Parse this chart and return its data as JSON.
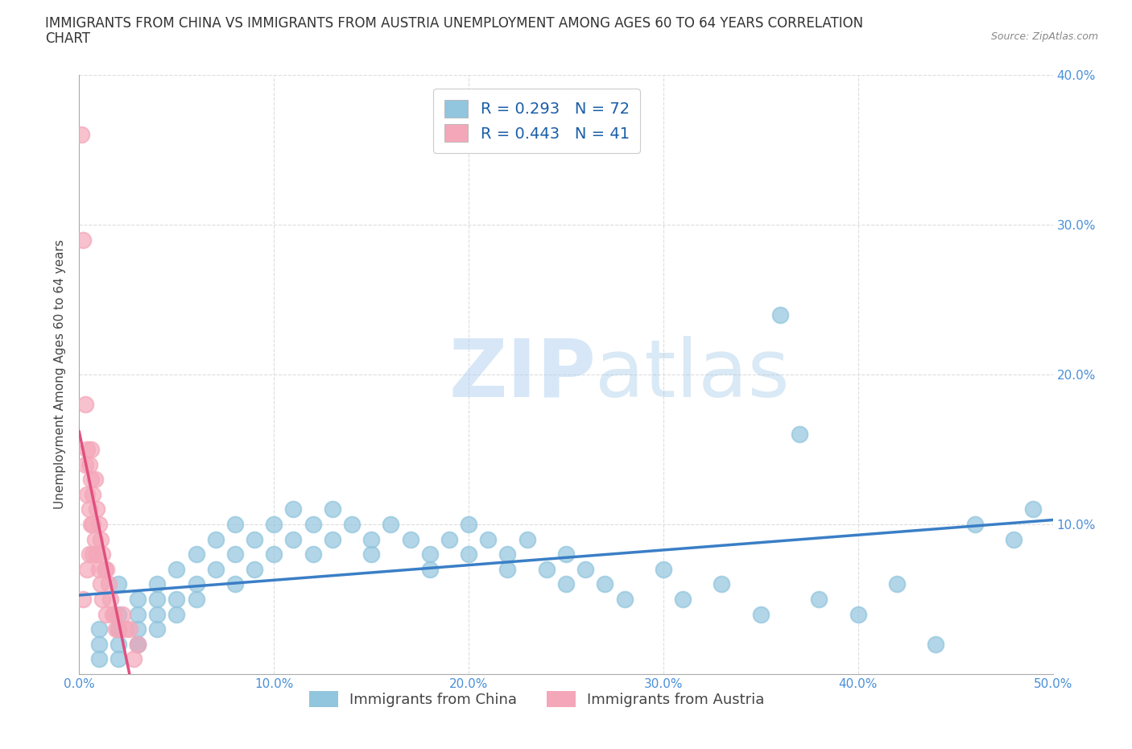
{
  "title_line1": "IMMIGRANTS FROM CHINA VS IMMIGRANTS FROM AUSTRIA UNEMPLOYMENT AMONG AGES 60 TO 64 YEARS CORRELATION",
  "title_line2": "CHART",
  "source_text": "Source: ZipAtlas.com",
  "ylabel": "Unemployment Among Ages 60 to 64 years",
  "xlim": [
    0.0,
    0.5
  ],
  "ylim": [
    0.0,
    0.4
  ],
  "xticks": [
    0.0,
    0.1,
    0.2,
    0.3,
    0.4,
    0.5
  ],
  "yticks": [
    0.0,
    0.1,
    0.2,
    0.3,
    0.4
  ],
  "xtick_labels": [
    "0.0%",
    "10.0%",
    "20.0%",
    "30.0%",
    "40.0%",
    "50.0%"
  ],
  "ytick_labels_right": [
    "",
    "10.0%",
    "20.0%",
    "30.0%",
    "40.0%"
  ],
  "china_color": "#92C5DE",
  "austria_color": "#F4A7B9",
  "china_line_color": "#3A7EC6",
  "austria_line_color": "#E05080",
  "china_R": 0.293,
  "china_N": 72,
  "austria_R": 0.443,
  "austria_N": 41,
  "china_scatter_x": [
    0.01,
    0.01,
    0.01,
    0.02,
    0.02,
    0.02,
    0.02,
    0.02,
    0.02,
    0.03,
    0.03,
    0.03,
    0.03,
    0.03,
    0.04,
    0.04,
    0.04,
    0.04,
    0.05,
    0.05,
    0.05,
    0.06,
    0.06,
    0.06,
    0.07,
    0.07,
    0.08,
    0.08,
    0.08,
    0.09,
    0.09,
    0.1,
    0.1,
    0.11,
    0.11,
    0.12,
    0.12,
    0.13,
    0.13,
    0.14,
    0.15,
    0.15,
    0.16,
    0.17,
    0.18,
    0.18,
    0.19,
    0.2,
    0.2,
    0.21,
    0.22,
    0.22,
    0.23,
    0.24,
    0.25,
    0.25,
    0.26,
    0.27,
    0.28,
    0.3,
    0.31,
    0.33,
    0.35,
    0.36,
    0.37,
    0.38,
    0.4,
    0.42,
    0.44,
    0.46,
    0.48,
    0.49
  ],
  "china_scatter_y": [
    0.02,
    0.03,
    0.01,
    0.03,
    0.02,
    0.04,
    0.01,
    0.03,
    0.06,
    0.04,
    0.02,
    0.03,
    0.05,
    0.02,
    0.05,
    0.04,
    0.03,
    0.06,
    0.07,
    0.05,
    0.04,
    0.06,
    0.08,
    0.05,
    0.07,
    0.09,
    0.08,
    0.06,
    0.1,
    0.07,
    0.09,
    0.08,
    0.1,
    0.09,
    0.11,
    0.08,
    0.1,
    0.09,
    0.11,
    0.1,
    0.08,
    0.09,
    0.1,
    0.09,
    0.08,
    0.07,
    0.09,
    0.08,
    0.1,
    0.09,
    0.07,
    0.08,
    0.09,
    0.07,
    0.08,
    0.06,
    0.07,
    0.06,
    0.05,
    0.07,
    0.05,
    0.06,
    0.04,
    0.24,
    0.16,
    0.05,
    0.04,
    0.06,
    0.02,
    0.1,
    0.09,
    0.11
  ],
  "austria_scatter_x": [
    0.001,
    0.002,
    0.002,
    0.003,
    0.003,
    0.004,
    0.004,
    0.004,
    0.005,
    0.005,
    0.005,
    0.006,
    0.006,
    0.006,
    0.007,
    0.007,
    0.007,
    0.008,
    0.008,
    0.009,
    0.009,
    0.01,
    0.01,
    0.011,
    0.011,
    0.012,
    0.012,
    0.013,
    0.014,
    0.014,
    0.015,
    0.016,
    0.017,
    0.018,
    0.019,
    0.02,
    0.022,
    0.024,
    0.026,
    0.028,
    0.03
  ],
  "austria_scatter_y": [
    0.36,
    0.29,
    0.05,
    0.18,
    0.14,
    0.15,
    0.12,
    0.07,
    0.14,
    0.11,
    0.08,
    0.15,
    0.13,
    0.1,
    0.12,
    0.1,
    0.08,
    0.13,
    0.09,
    0.11,
    0.08,
    0.1,
    0.07,
    0.09,
    0.06,
    0.08,
    0.05,
    0.07,
    0.07,
    0.04,
    0.06,
    0.05,
    0.04,
    0.04,
    0.03,
    0.03,
    0.04,
    0.03,
    0.03,
    0.01,
    0.02
  ],
  "watermark_zip": "ZIP",
  "watermark_atlas": "atlas",
  "legend_china_label": "Immigrants from China",
  "legend_austria_label": "Immigrants from Austria",
  "grid_color": "#DDDDDD",
  "title_fontsize": 12,
  "axis_label_fontsize": 11,
  "tick_fontsize": 11,
  "legend_fontsize": 14
}
